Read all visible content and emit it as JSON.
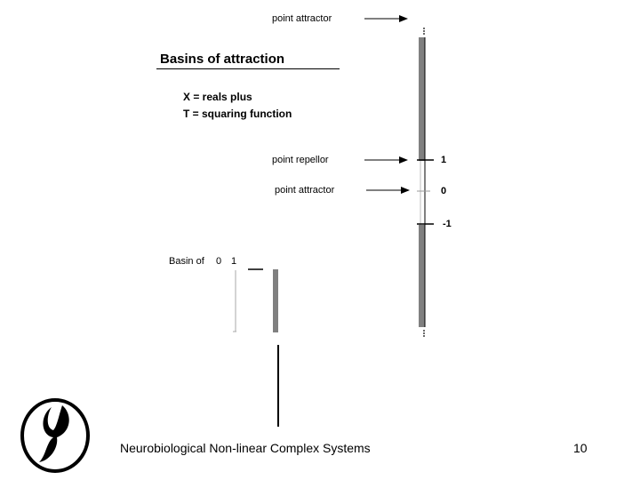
{
  "title": "Basins of attraction",
  "definitions": {
    "x_line": "X = reals plus",
    "t_line": "T = squaring function"
  },
  "labels": {
    "top_attractor": "point attractor",
    "repellor": "point repellor",
    "zero_attractor": "point attractor"
  },
  "ticks": {
    "one": "1",
    "zero": "0",
    "minus_one": "-1"
  },
  "basin": {
    "label": "Basin of",
    "val_zero": "0",
    "val_one": "1"
  },
  "footer": {
    "course_title": "Neurobiological Non-linear Complex Systems",
    "page_number": "10"
  },
  "colors": {
    "line_gray": "#808080",
    "ink": "#000000"
  },
  "icons": {
    "logo": "stylized-figure-logo"
  }
}
